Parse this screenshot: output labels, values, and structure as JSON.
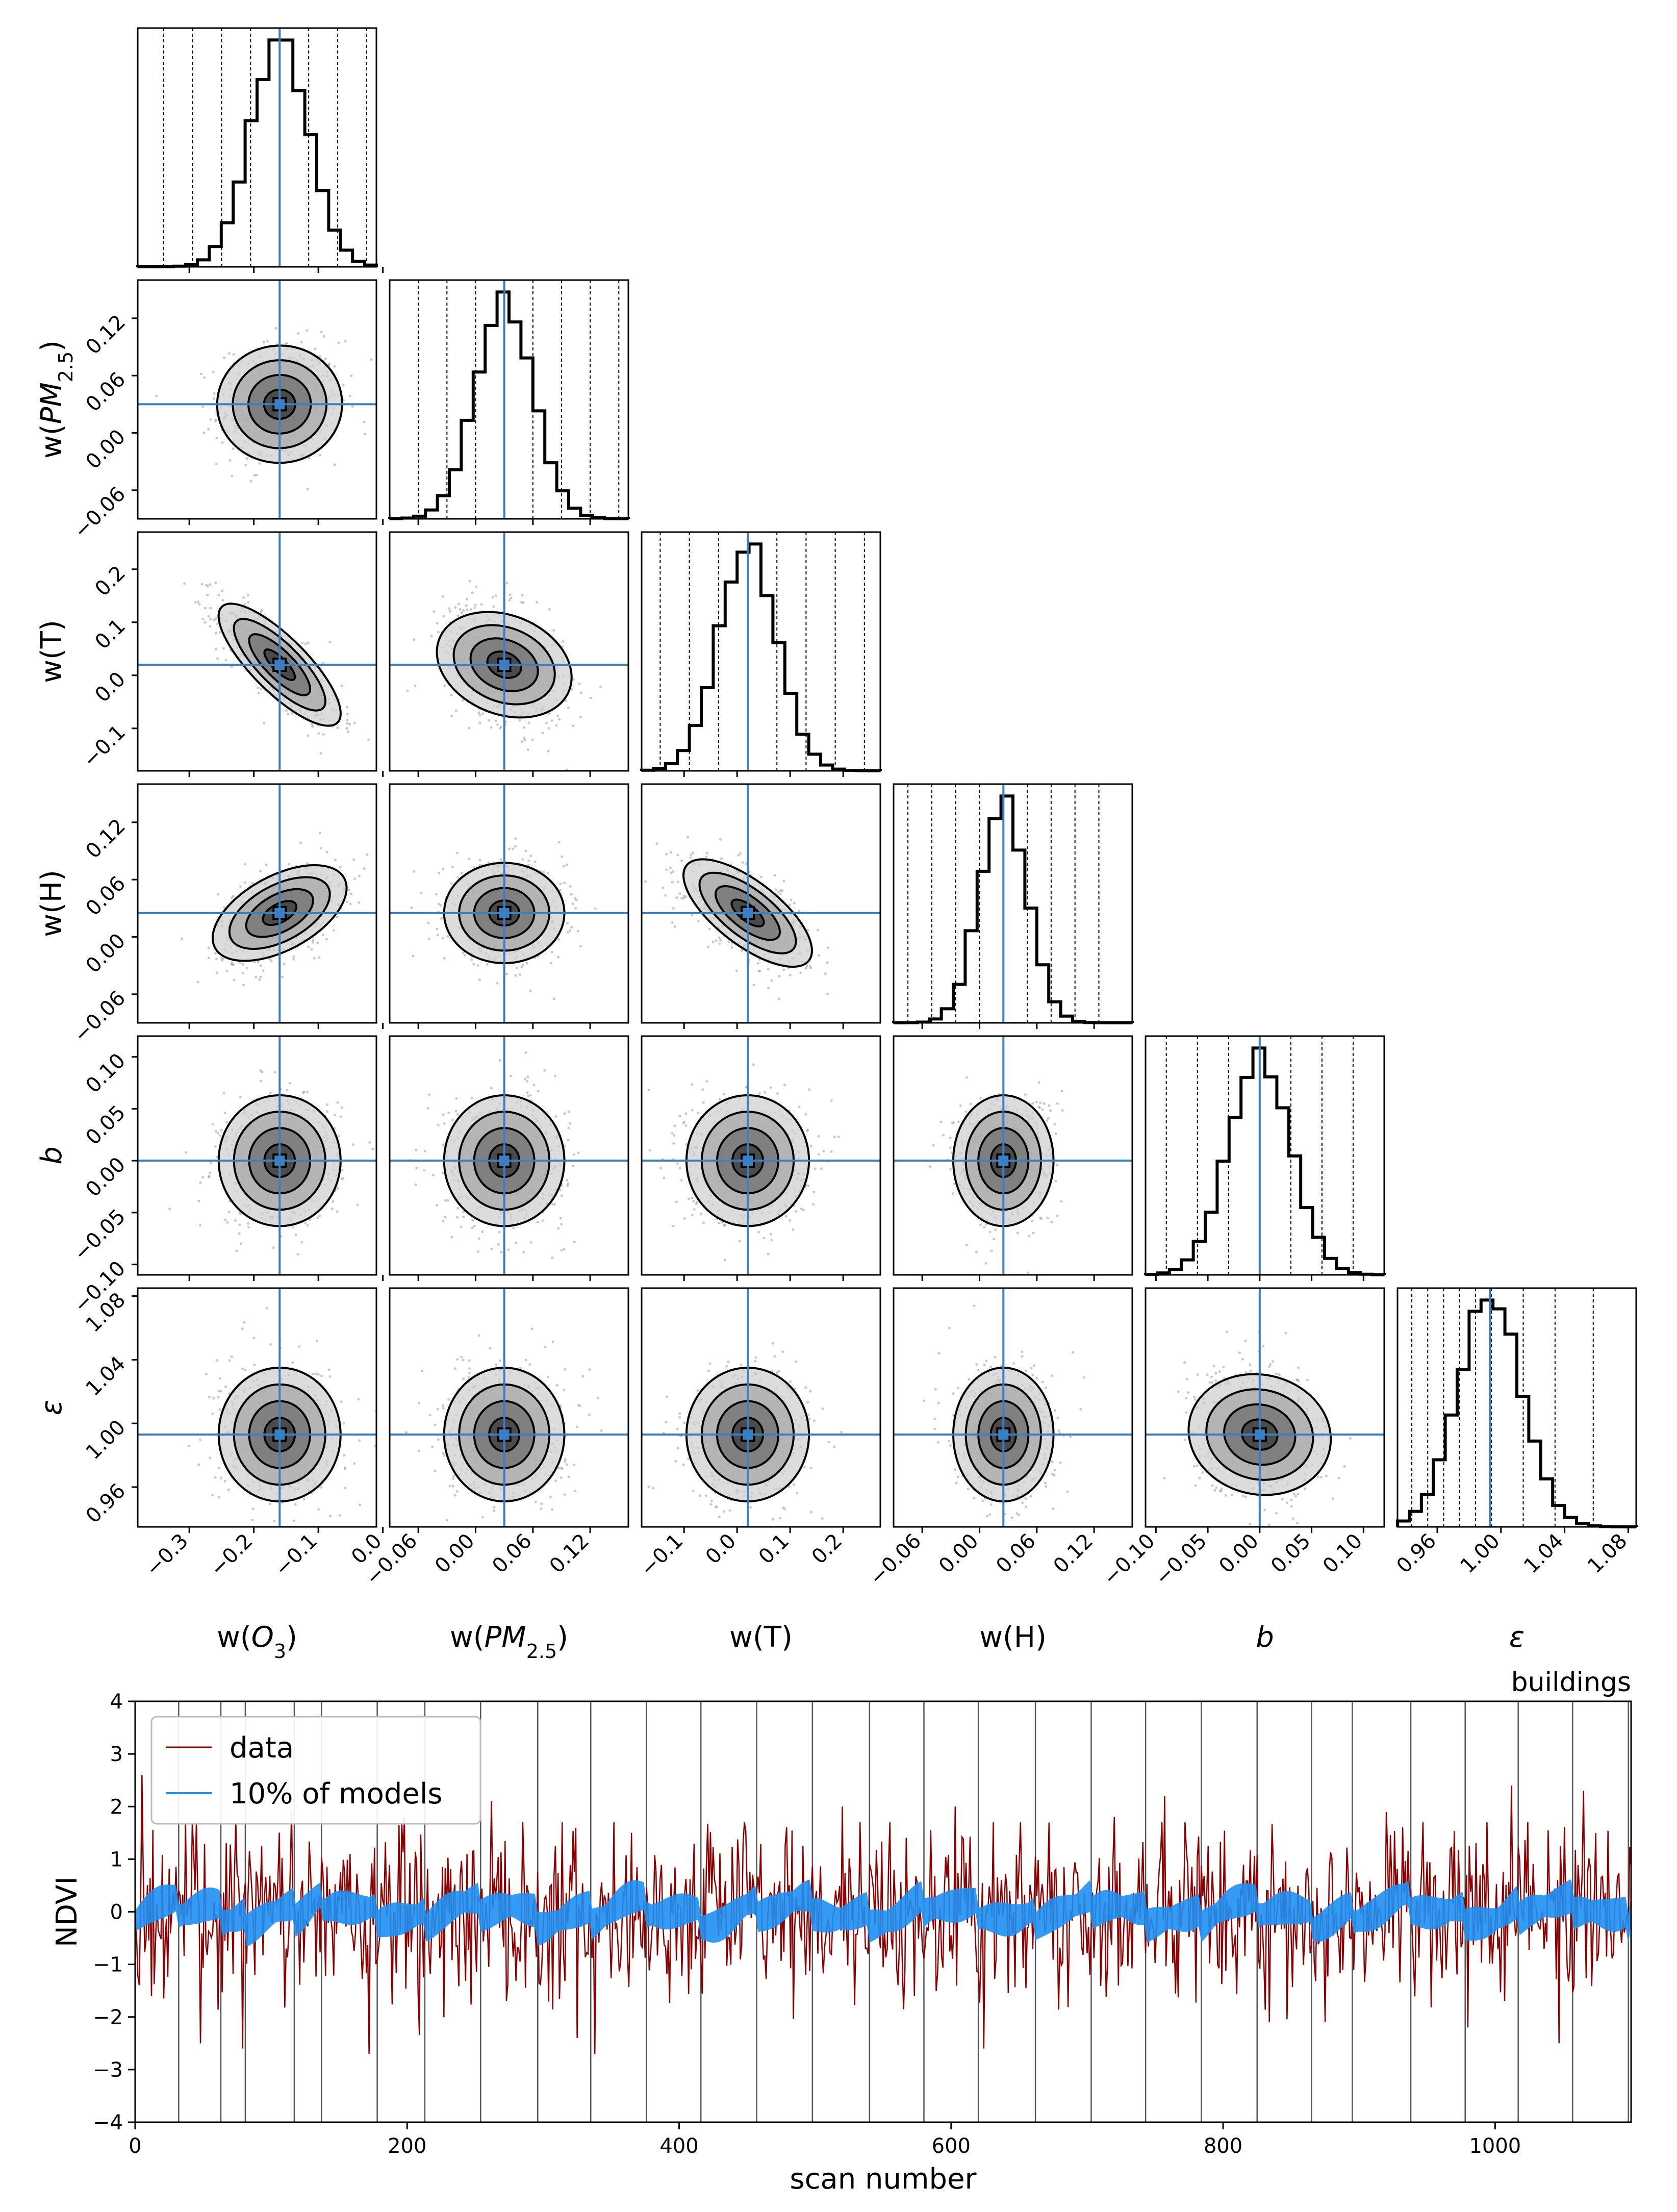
{
  "chart_data": [
    {
      "type": "corner",
      "title": "",
      "parameters": [
        {
          "key": "wO3",
          "label_html": "w(O3)",
          "label_parts": [
            [
              "w(",
              ""
            ],
            [
              "O",
              "i"
            ],
            [
              "3",
              "sub"
            ],
            [
              ")",
              ""
            ]
          ],
          "truth": -0.16,
          "range": [
            -0.38,
            -0.01
          ],
          "ticks": [
            -0.3,
            -0.2,
            -0.1,
            0.0
          ],
          "tick_labels": [
            "−0.3",
            "−0.2",
            "−0.1",
            "0.0"
          ],
          "mean": -0.16,
          "sd": 0.045,
          "quantile_lines": [
            -0.34,
            -0.295,
            -0.25,
            -0.205,
            -0.16,
            -0.115,
            -0.07,
            -0.025
          ]
        },
        {
          "key": "wPM",
          "label_parts": [
            [
              "w(",
              ""
            ],
            [
              "PM",
              "i"
            ],
            [
              "2.5",
              "sub"
            ],
            [
              ")",
              ""
            ]
          ],
          "truth": 0.03,
          "range": [
            -0.09,
            0.16
          ],
          "ticks": [
            -0.06,
            0.0,
            0.06,
            0.12
          ],
          "tick_labels": [
            "−0.06",
            "0.00",
            "0.06",
            "0.12"
          ],
          "mean": 0.03,
          "sd": 0.03,
          "quantile_lines": [
            -0.09,
            -0.06,
            -0.03,
            0.0,
            0.03,
            0.06,
            0.09,
            0.12,
            0.15
          ]
        },
        {
          "key": "wT",
          "label_parts": [
            [
              "w(T)",
              ""
            ]
          ],
          "truth": 0.02,
          "range": [
            -0.18,
            0.27
          ],
          "ticks": [
            -0.1,
            0.0,
            0.1,
            0.2
          ],
          "tick_labels": [
            "−0.1",
            "0.0",
            "0.1",
            "0.2"
          ],
          "mean": 0.02,
          "sd": 0.055,
          "quantile_lines": [
            -0.145,
            -0.09,
            -0.035,
            0.02,
            0.075,
            0.13,
            0.185,
            0.24
          ]
        },
        {
          "key": "wH",
          "label_parts": [
            [
              "w(H)",
              ""
            ]
          ],
          "truth": 0.025,
          "range": [
            -0.09,
            0.16
          ],
          "ticks": [
            -0.06,
            0.0,
            0.06,
            0.12
          ],
          "tick_labels": [
            "−0.06",
            "0.00",
            "0.06",
            "0.12"
          ],
          "mean": 0.025,
          "sd": 0.025,
          "quantile_lines": [
            -0.075,
            -0.05,
            -0.025,
            0.0,
            0.025,
            0.05,
            0.075,
            0.1,
            0.125
          ]
        },
        {
          "key": "b",
          "label_parts": [
            [
              "b",
              "i"
            ]
          ],
          "truth": 0.0,
          "range": [
            -0.11,
            0.12
          ],
          "ticks": [
            -0.1,
            -0.05,
            0.0,
            0.05,
            0.1
          ],
          "tick_labels": [
            "−0.10",
            "−0.05",
            "0.00",
            "0.05",
            "0.10"
          ],
          "mean": 0.0,
          "sd": 0.03,
          "quantile_lines": [
            -0.09,
            -0.06,
            -0.03,
            0.0,
            0.03,
            0.06,
            0.09
          ]
        },
        {
          "key": "eps",
          "label_parts": [
            [
              "ε",
              "i"
            ]
          ],
          "truth": 0.993,
          "range": [
            0.935,
            1.085
          ],
          "ticks": [
            0.96,
            1.0,
            1.04,
            1.08
          ],
          "tick_labels": [
            "0.96",
            "1.00",
            "1.04",
            "1.08"
          ],
          "mean": 0.993,
          "sd": 0.02,
          "quantile_lines": [
            0.944,
            0.954,
            0.964,
            0.974,
            0.984,
            0.994,
            1.014,
            1.034,
            1.058
          ]
        }
      ],
      "correlations": {
        "wPM|wO3": 0.05,
        "wT|wO3": -0.8,
        "wT|wPM": -0.35,
        "wH|wO3": 0.45,
        "wH|wPM": 0.0,
        "wH|wT": -0.6,
        "b|wO3": 0.0,
        "b|wPM": 0.0,
        "b|wT": 0.0,
        "b|wH": 0.0,
        "eps|wO3": 0.0,
        "eps|wPM": 0.0,
        "eps|wT": 0.0,
        "eps|wH": 0.0,
        "eps|b": -0.2
      },
      "histtype": "step",
      "contour_levels_sigma": [
        0.5,
        1.0,
        1.5,
        2.0
      ]
    },
    {
      "type": "line",
      "title": "buildings",
      "xlabel": "scan number",
      "ylabel": "NDVI",
      "xlim": [
        0,
        1100
      ],
      "ylim": [
        -4,
        4
      ],
      "x_ticks": [
        0,
        200,
        400,
        600,
        800,
        1000
      ],
      "y_ticks": [
        -4,
        -3,
        -2,
        -1,
        0,
        1,
        2,
        3,
        4
      ],
      "legend_position": "upper-left",
      "series": [
        {
          "name": "data",
          "color": "#8b0000",
          "std": 0.85,
          "notable_points": [
            [
              5,
              2.6
            ],
            [
              12,
              -1.6
            ],
            [
              48,
              -2.5
            ],
            [
              79,
              -2.6
            ],
            [
              115,
              1.9
            ],
            [
              172,
              -2.7
            ],
            [
              198,
              1.8
            ],
            [
              262,
              2.1
            ],
            [
              338,
              -2.7
            ],
            [
              365,
              1.5
            ],
            [
              520,
              2.0
            ],
            [
              573,
              -1.6
            ],
            [
              603,
              2.0
            ],
            [
              624,
              -2.6
            ],
            [
              720,
              1.8
            ],
            [
              757,
              2.2
            ],
            [
              834,
              -2.1
            ],
            [
              875,
              -2.1
            ],
            [
              920,
              1.9
            ],
            [
              980,
              -2.2
            ],
            [
              1012,
              2.4
            ],
            [
              1047,
              -2.5
            ],
            [
              1065,
              2.3
            ]
          ]
        },
        {
          "name": "10% of models",
          "color": "#1f8ff2",
          "band_halfwidth": 0.2
        }
      ],
      "segment_boundaries": [
        32,
        63,
        81,
        117,
        137,
        178,
        213,
        254,
        296,
        335,
        376,
        416,
        457,
        498,
        540,
        580,
        620,
        662,
        703,
        743,
        784,
        825,
        865,
        895,
        938,
        978,
        1017,
        1057,
        1098
      ]
    }
  ]
}
